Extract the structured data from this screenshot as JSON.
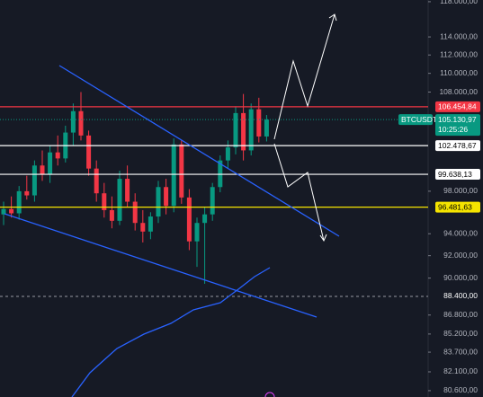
{
  "chart_data": {
    "type": "candlestick",
    "log_scale": true,
    "ylim": [
      80100,
      118200
    ],
    "yticks": [
      {
        "value": 118000,
        "label": "118.000,00"
      },
      {
        "value": 114000,
        "label": "114.000,00"
      },
      {
        "value": 112000,
        "label": "112.000,00"
      },
      {
        "value": 110000,
        "label": "110.000,00"
      },
      {
        "value": 108000,
        "label": "108.000,00"
      },
      {
        "value": 98000,
        "label": "98.000,00"
      },
      {
        "value": 94000,
        "label": "94.000,00"
      },
      {
        "value": 92000,
        "label": "92.000,00"
      },
      {
        "value": 90000,
        "label": "90.000,00"
      },
      {
        "value": 86800,
        "label": "86.800,00"
      },
      {
        "value": 85200,
        "label": "85.200,00"
      },
      {
        "value": 83700,
        "label": "83.700,00"
      },
      {
        "value": 82100,
        "label": "82.100,00"
      },
      {
        "value": 80600,
        "label": "80.600,00"
      }
    ],
    "up_color": "#089981",
    "down_color": "#f23645",
    "open": [
      95800,
      96300,
      95900,
      98000,
      97600,
      100500,
      99600,
      101800,
      101200,
      103800,
      106000,
      103500,
      100200,
      97800,
      96200,
      95200,
      99200,
      97000,
      95000,
      94200,
      95600,
      98400,
      96600,
      102600,
      97400,
      93300,
      95000,
      95800,
      98400,
      101000,
      102300,
      105800,
      102000,
      106200,
      103400
    ],
    "high": [
      97000,
      97500,
      98500,
      99500,
      101000,
      102000,
      102500,
      103500,
      104500,
      106800,
      108000,
      104000,
      101000,
      98800,
      97500,
      100000,
      100500,
      97800,
      96200,
      96000,
      99000,
      99200,
      103200,
      103000,
      98200,
      95500,
      96500,
      98800,
      101500,
      103000,
      106500,
      107800,
      106800,
      107400,
      105600
    ],
    "low": [
      94800,
      95500,
      95300,
      97200,
      97000,
      99000,
      98800,
      100500,
      100800,
      102500,
      103000,
      99500,
      97000,
      95500,
      94500,
      94800,
      96500,
      94300,
      93200,
      93500,
      95000,
      95800,
      96000,
      96800,
      92500,
      91000,
      89500,
      95200,
      97900,
      100200,
      101600,
      101000,
      101500,
      102800,
      102900
    ],
    "close": [
      96300,
      95900,
      98000,
      97600,
      100500,
      99600,
      101800,
      101200,
      103800,
      106000,
      103500,
      100200,
      97800,
      96200,
      95200,
      99200,
      97000,
      95000,
      94200,
      95600,
      98400,
      96600,
      102600,
      97400,
      93300,
      95000,
      95800,
      98400,
      101000,
      102300,
      105800,
      102000,
      106200,
      103400,
      105130.97
    ],
    "levels": [
      {
        "value": 106454.84,
        "label": "106.454,84",
        "color": "#f23645",
        "text_color": "#ffffff"
      },
      {
        "value": 102478.67,
        "label": "102.478,67",
        "color": "#ffffff",
        "text_color": "#000000"
      },
      {
        "value": 99638.13,
        "label": "99.638,13",
        "color": "#ffffff",
        "text_color": "#000000"
      },
      {
        "value": 96481.63,
        "label": "96.481,63",
        "color": "#f5e400",
        "text_color": "#000000"
      }
    ],
    "current": {
      "symbol": "BTCUSDT",
      "value": 105130.97,
      "label": "105.130,97",
      "time": "10:25:26",
      "color": "#089981"
    },
    "crosshair": {
      "value": 88400,
      "label": "88.400,00"
    }
  }
}
